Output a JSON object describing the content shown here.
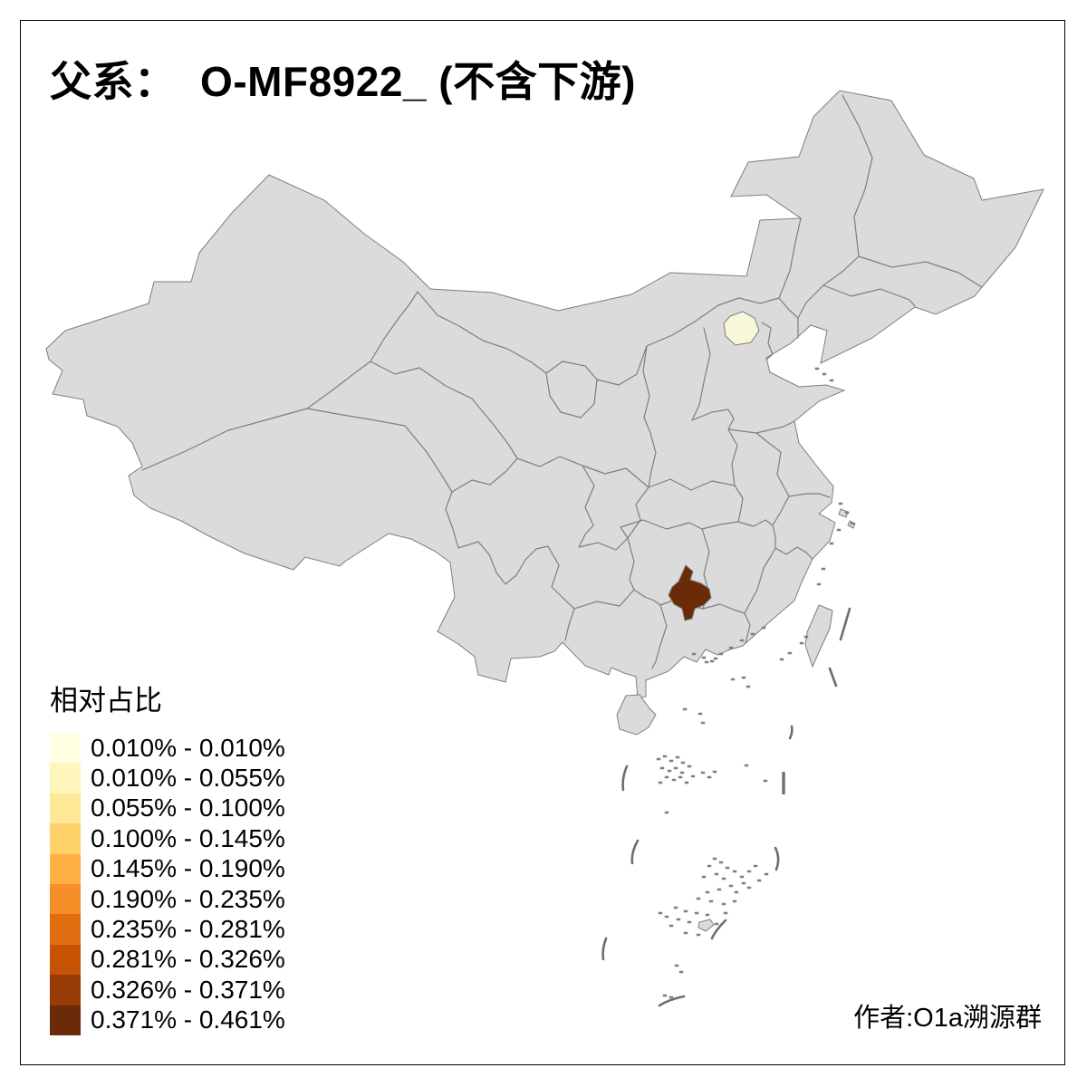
{
  "title": "父系：  O-MF8922_ (不含下游)",
  "attribution": "作者:O1a溯源群",
  "legend": {
    "title": "相对占比",
    "classes": [
      {
        "label": "0.010% - 0.010%",
        "color": "#FFFFE2"
      },
      {
        "label": "0.010% - 0.055%",
        "color": "#FFF6BD"
      },
      {
        "label": "0.055% - 0.100%",
        "color": "#FEE797"
      },
      {
        "label": "0.100% - 0.145%",
        "color": "#FED16B"
      },
      {
        "label": "0.145% - 0.190%",
        "color": "#FEB044"
      },
      {
        "label": "0.190% - 0.235%",
        "color": "#F78F29"
      },
      {
        "label": "0.235% - 0.281%",
        "color": "#E26D11"
      },
      {
        "label": "0.281% - 0.326%",
        "color": "#C65204"
      },
      {
        "label": "0.326% - 0.371%",
        "color": "#993B05"
      },
      {
        "label": "0.371% - 0.461%",
        "color": "#6B2A08"
      }
    ]
  },
  "map": {
    "base_fill": "#DBDBDB",
    "border_color": "#7E7E7E",
    "dash_color": "#6E6E6E",
    "highlighted_regions": [
      {
        "name": "beijing",
        "value_range": "0.010% - 0.010%",
        "color": "#F8F8D8"
      },
      {
        "name": "hunan-prefecture",
        "value_range": "0.371% - 0.461%",
        "color": "#6B2A08"
      }
    ]
  }
}
